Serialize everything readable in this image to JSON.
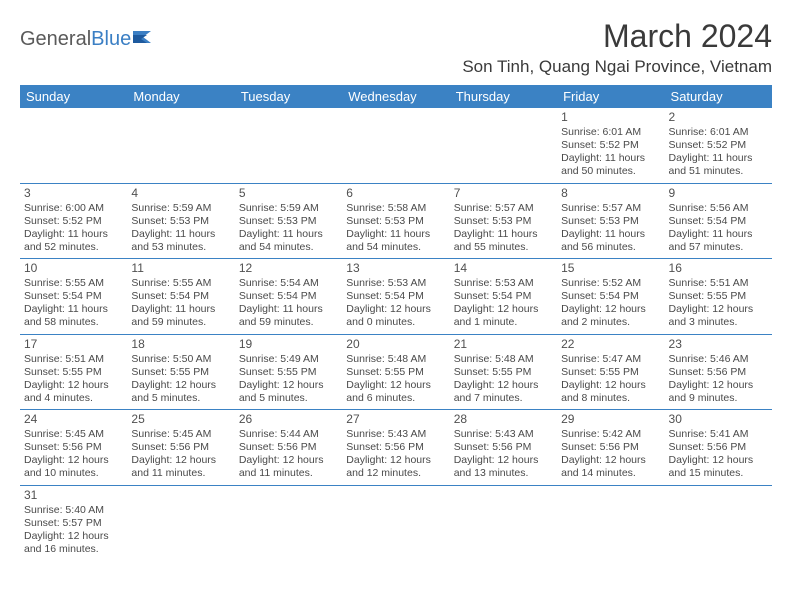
{
  "logo": {
    "text1": "General",
    "text2": "Blue"
  },
  "title": "March 2024",
  "location": "Son Tinh, Quang Ngai Province, Vietnam",
  "colors": {
    "header_bg": "#3b82c4",
    "header_text": "#ffffff",
    "border": "#3b82c4",
    "body_text": "#4a4a4a",
    "logo_gray": "#5a5a5a",
    "logo_blue": "#3b7fc4"
  },
  "day_headers": [
    "Sunday",
    "Monday",
    "Tuesday",
    "Wednesday",
    "Thursday",
    "Friday",
    "Saturday"
  ],
  "weeks": [
    [
      null,
      null,
      null,
      null,
      null,
      {
        "n": "1",
        "sr": "Sunrise: 6:01 AM",
        "ss": "Sunset: 5:52 PM",
        "dl": "Daylight: 11 hours and 50 minutes."
      },
      {
        "n": "2",
        "sr": "Sunrise: 6:01 AM",
        "ss": "Sunset: 5:52 PM",
        "dl": "Daylight: 11 hours and 51 minutes."
      }
    ],
    [
      {
        "n": "3",
        "sr": "Sunrise: 6:00 AM",
        "ss": "Sunset: 5:52 PM",
        "dl": "Daylight: 11 hours and 52 minutes."
      },
      {
        "n": "4",
        "sr": "Sunrise: 5:59 AM",
        "ss": "Sunset: 5:53 PM",
        "dl": "Daylight: 11 hours and 53 minutes."
      },
      {
        "n": "5",
        "sr": "Sunrise: 5:59 AM",
        "ss": "Sunset: 5:53 PM",
        "dl": "Daylight: 11 hours and 54 minutes."
      },
      {
        "n": "6",
        "sr": "Sunrise: 5:58 AM",
        "ss": "Sunset: 5:53 PM",
        "dl": "Daylight: 11 hours and 54 minutes."
      },
      {
        "n": "7",
        "sr": "Sunrise: 5:57 AM",
        "ss": "Sunset: 5:53 PM",
        "dl": "Daylight: 11 hours and 55 minutes."
      },
      {
        "n": "8",
        "sr": "Sunrise: 5:57 AM",
        "ss": "Sunset: 5:53 PM",
        "dl": "Daylight: 11 hours and 56 minutes."
      },
      {
        "n": "9",
        "sr": "Sunrise: 5:56 AM",
        "ss": "Sunset: 5:54 PM",
        "dl": "Daylight: 11 hours and 57 minutes."
      }
    ],
    [
      {
        "n": "10",
        "sr": "Sunrise: 5:55 AM",
        "ss": "Sunset: 5:54 PM",
        "dl": "Daylight: 11 hours and 58 minutes."
      },
      {
        "n": "11",
        "sr": "Sunrise: 5:55 AM",
        "ss": "Sunset: 5:54 PM",
        "dl": "Daylight: 11 hours and 59 minutes."
      },
      {
        "n": "12",
        "sr": "Sunrise: 5:54 AM",
        "ss": "Sunset: 5:54 PM",
        "dl": "Daylight: 11 hours and 59 minutes."
      },
      {
        "n": "13",
        "sr": "Sunrise: 5:53 AM",
        "ss": "Sunset: 5:54 PM",
        "dl": "Daylight: 12 hours and 0 minutes."
      },
      {
        "n": "14",
        "sr": "Sunrise: 5:53 AM",
        "ss": "Sunset: 5:54 PM",
        "dl": "Daylight: 12 hours and 1 minute."
      },
      {
        "n": "15",
        "sr": "Sunrise: 5:52 AM",
        "ss": "Sunset: 5:54 PM",
        "dl": "Daylight: 12 hours and 2 minutes."
      },
      {
        "n": "16",
        "sr": "Sunrise: 5:51 AM",
        "ss": "Sunset: 5:55 PM",
        "dl": "Daylight: 12 hours and 3 minutes."
      }
    ],
    [
      {
        "n": "17",
        "sr": "Sunrise: 5:51 AM",
        "ss": "Sunset: 5:55 PM",
        "dl": "Daylight: 12 hours and 4 minutes."
      },
      {
        "n": "18",
        "sr": "Sunrise: 5:50 AM",
        "ss": "Sunset: 5:55 PM",
        "dl": "Daylight: 12 hours and 5 minutes."
      },
      {
        "n": "19",
        "sr": "Sunrise: 5:49 AM",
        "ss": "Sunset: 5:55 PM",
        "dl": "Daylight: 12 hours and 5 minutes."
      },
      {
        "n": "20",
        "sr": "Sunrise: 5:48 AM",
        "ss": "Sunset: 5:55 PM",
        "dl": "Daylight: 12 hours and 6 minutes."
      },
      {
        "n": "21",
        "sr": "Sunrise: 5:48 AM",
        "ss": "Sunset: 5:55 PM",
        "dl": "Daylight: 12 hours and 7 minutes."
      },
      {
        "n": "22",
        "sr": "Sunrise: 5:47 AM",
        "ss": "Sunset: 5:55 PM",
        "dl": "Daylight: 12 hours and 8 minutes."
      },
      {
        "n": "23",
        "sr": "Sunrise: 5:46 AM",
        "ss": "Sunset: 5:56 PM",
        "dl": "Daylight: 12 hours and 9 minutes."
      }
    ],
    [
      {
        "n": "24",
        "sr": "Sunrise: 5:45 AM",
        "ss": "Sunset: 5:56 PM",
        "dl": "Daylight: 12 hours and 10 minutes."
      },
      {
        "n": "25",
        "sr": "Sunrise: 5:45 AM",
        "ss": "Sunset: 5:56 PM",
        "dl": "Daylight: 12 hours and 11 minutes."
      },
      {
        "n": "26",
        "sr": "Sunrise: 5:44 AM",
        "ss": "Sunset: 5:56 PM",
        "dl": "Daylight: 12 hours and 11 minutes."
      },
      {
        "n": "27",
        "sr": "Sunrise: 5:43 AM",
        "ss": "Sunset: 5:56 PM",
        "dl": "Daylight: 12 hours and 12 minutes."
      },
      {
        "n": "28",
        "sr": "Sunrise: 5:43 AM",
        "ss": "Sunset: 5:56 PM",
        "dl": "Daylight: 12 hours and 13 minutes."
      },
      {
        "n": "29",
        "sr": "Sunrise: 5:42 AM",
        "ss": "Sunset: 5:56 PM",
        "dl": "Daylight: 12 hours and 14 minutes."
      },
      {
        "n": "30",
        "sr": "Sunrise: 5:41 AM",
        "ss": "Sunset: 5:56 PM",
        "dl": "Daylight: 12 hours and 15 minutes."
      }
    ],
    [
      {
        "n": "31",
        "sr": "Sunrise: 5:40 AM",
        "ss": "Sunset: 5:57 PM",
        "dl": "Daylight: 12 hours and 16 minutes."
      },
      null,
      null,
      null,
      null,
      null,
      null
    ]
  ]
}
